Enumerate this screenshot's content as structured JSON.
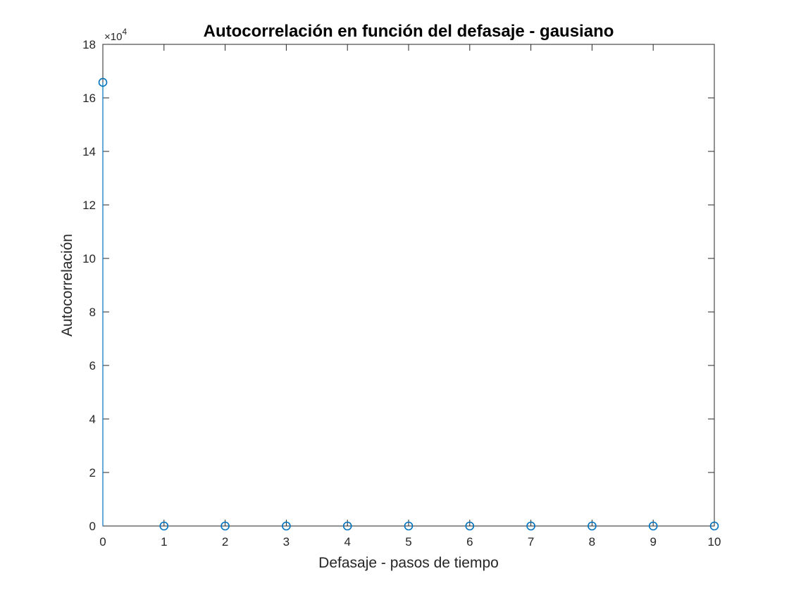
{
  "chart_data": {
    "type": "stem",
    "title": "Autocorrelación en función del defasaje - gausiano",
    "xlabel": "Defasaje - pasos de tiempo",
    "ylabel": "Autocorrelación",
    "xlim": [
      0,
      10
    ],
    "ylim": [
      0,
      180000
    ],
    "x_ticks": [
      0,
      1,
      2,
      3,
      4,
      5,
      6,
      7,
      8,
      9,
      10
    ],
    "y_ticks": [
      0,
      20000,
      40000,
      60000,
      80000,
      100000,
      120000,
      140000,
      160000,
      180000
    ],
    "y_tick_labels": [
      "0",
      "2",
      "4",
      "6",
      "8",
      "10",
      "12",
      "14",
      "16",
      "18"
    ],
    "y_exponent_base": "×10",
    "y_exponent_power": "4",
    "grid": false,
    "legend": "none",
    "marker": "circle",
    "color": "#0072BD",
    "x": [
      0,
      1,
      2,
      3,
      4,
      5,
      6,
      7,
      8,
      9,
      10
    ],
    "y": [
      165800,
      0,
      0,
      0,
      0,
      0,
      0,
      0,
      0,
      0,
      0
    ]
  }
}
